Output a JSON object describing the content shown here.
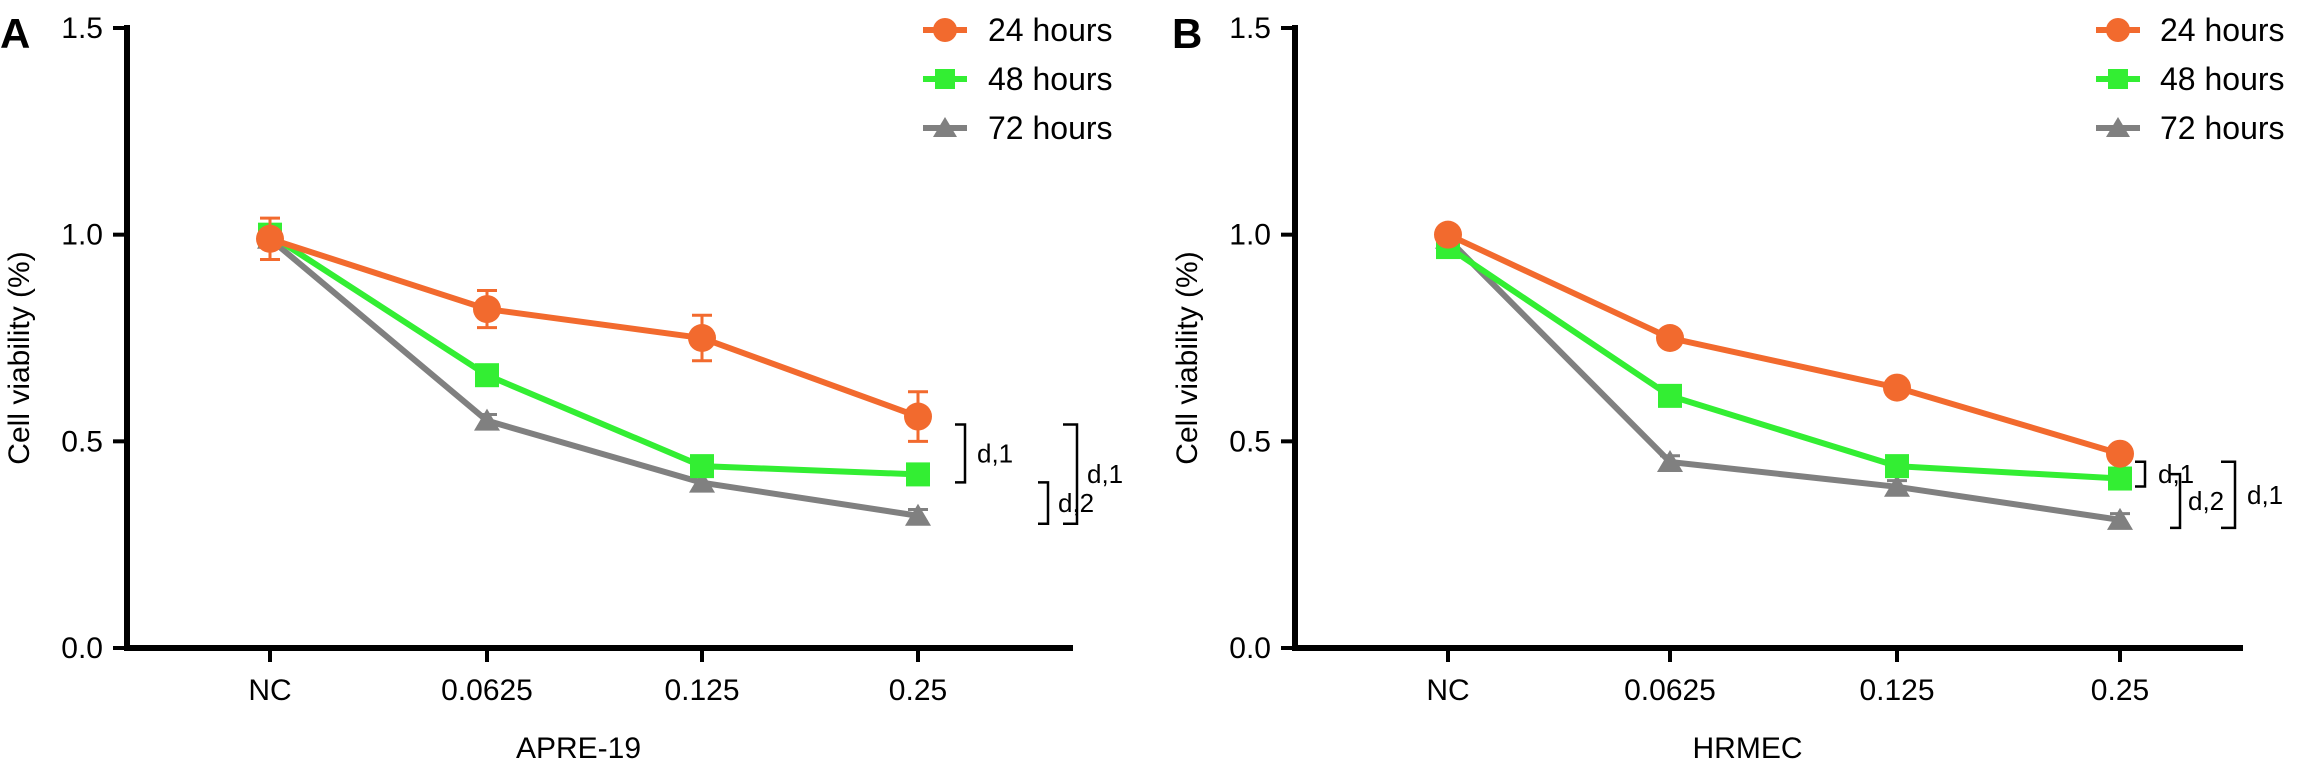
{
  "chart_data": [
    {
      "type": "line",
      "panel": "A",
      "categories": [
        "NC",
        "0.0625",
        "0.125",
        "0.25"
      ],
      "xlabel": "APRE-19",
      "ylabel": "Cell viability (%)",
      "ylim": [
        0,
        1.5
      ],
      "yticks": [
        "0.0",
        "0.5",
        "1.0",
        "1.5"
      ],
      "grid": false,
      "legend_position": "top-right",
      "series": [
        {
          "name": "24 hours",
          "color": "#f26a2e",
          "marker": "circle",
          "values": [
            0.99,
            0.82,
            0.75,
            0.56
          ],
          "errors": [
            0.05,
            0.045,
            0.055,
            0.06
          ]
        },
        {
          "name": "48 hours",
          "color": "#33ee33",
          "marker": "square",
          "values": [
            1.0,
            0.66,
            0.44,
            0.42
          ],
          "errors": [
            0.02,
            0.02,
            0.02,
            0.015
          ]
        },
        {
          "name": "72 hours",
          "color": "#808080",
          "marker": "triangle",
          "values": [
            0.99,
            0.55,
            0.4,
            0.32
          ],
          "errors": [
            0.01,
            0.015,
            0.015,
            0.015
          ]
        }
      ],
      "annotations": [
        {
          "label": "d,1",
          "type": "bracket",
          "between": [
            "24 hours",
            "48 hours"
          ]
        },
        {
          "label": "d,2",
          "type": "bracket",
          "between": [
            "48 hours",
            "72 hours"
          ]
        },
        {
          "label": "d,1",
          "type": "bracket",
          "between": [
            "24 hours",
            "72 hours"
          ]
        }
      ]
    },
    {
      "type": "line",
      "panel": "B",
      "categories": [
        "NC",
        "0.0625",
        "0.125",
        "0.25"
      ],
      "xlabel": "HRMEC",
      "ylabel": "Cell viability (%)",
      "ylim": [
        0,
        1.5
      ],
      "yticks": [
        "0.0",
        "0.5",
        "1.0",
        "1.5"
      ],
      "grid": false,
      "legend_position": "top-right",
      "series": [
        {
          "name": "24 hours",
          "color": "#f26a2e",
          "marker": "circle",
          "values": [
            1.0,
            0.75,
            0.63,
            0.47
          ],
          "errors": [
            0.015,
            0.02,
            0.02,
            0.02
          ]
        },
        {
          "name": "48 hours",
          "color": "#33ee33",
          "marker": "square",
          "values": [
            0.97,
            0.61,
            0.44,
            0.41
          ],
          "errors": [
            0.02,
            0.02,
            0.02,
            0.02
          ]
        },
        {
          "name": "72 hours",
          "color": "#808080",
          "marker": "triangle",
          "values": [
            0.99,
            0.45,
            0.39,
            0.31
          ],
          "errors": [
            0.01,
            0.015,
            0.015,
            0.015
          ]
        }
      ],
      "annotations": [
        {
          "label": "d,1",
          "type": "bracket",
          "between": [
            "24 hours",
            "48 hours"
          ]
        },
        {
          "label": "d,2",
          "type": "bracket",
          "between": [
            "48 hours",
            "72 hours"
          ]
        },
        {
          "label": "d,1",
          "type": "bracket",
          "between": [
            "24 hours",
            "72 hours"
          ]
        }
      ]
    }
  ]
}
